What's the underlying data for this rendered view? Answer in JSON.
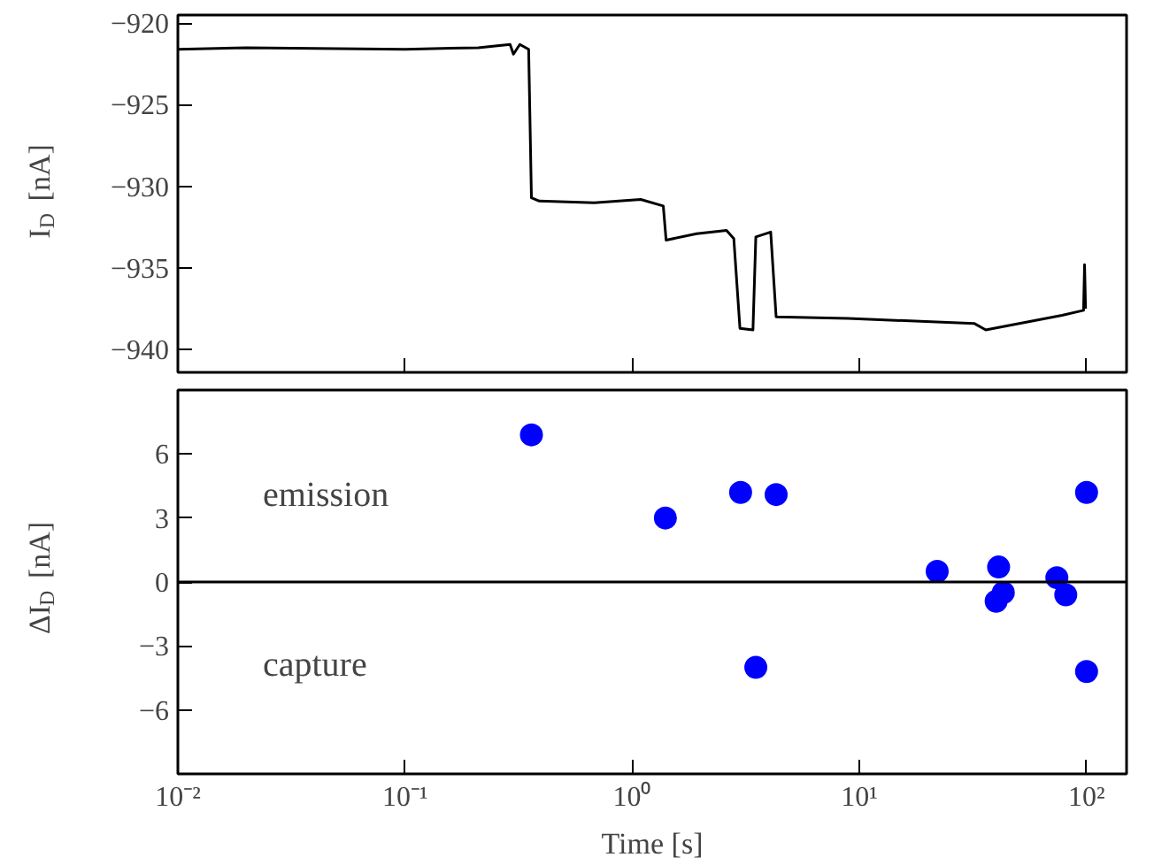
{
  "chart_data": [
    {
      "type": "line",
      "ylabel": "I$_{D}$ [nA]",
      "log": "x",
      "grid": false,
      "tick_labels": "y",
      "marker": "none",
      "line_style": "solid",
      "xlim": [
        0.01,
        150
      ],
      "xticks": [
        {
          "value": 0.01,
          "label": null
        },
        {
          "value": 0.1,
          "label": null
        },
        {
          "value": 1,
          "label": null
        },
        {
          "value": 10,
          "label": null
        },
        {
          "value": 100,
          "label": null
        }
      ],
      "ylim": [
        -941.4,
        -919.5
      ],
      "yticks": [
        {
          "value": -940,
          "label": "−940"
        },
        {
          "value": -935,
          "label": "−935"
        },
        {
          "value": -930,
          "label": "−930"
        },
        {
          "value": -925,
          "label": "−925"
        },
        {
          "value": -920,
          "label": "−920"
        }
      ],
      "x": [
        0.01,
        0.02,
        0.1,
        0.21,
        0.29,
        0.3,
        0.32,
        0.35,
        0.36,
        0.39,
        0.68,
        1.09,
        1.37,
        1.41,
        1.92,
        2.6,
        2.8,
        2.98,
        3.4,
        3.5,
        4.07,
        4.3,
        8.9,
        32,
        36,
        78,
        97,
        98,
        99
      ],
      "series": [
        {
          "color": "#000000",
          "values": [
            -921.6,
            -921.5,
            -921.6,
            -921.5,
            -921.3,
            -921.9,
            -921.3,
            -921.6,
            -930.7,
            -930.9,
            -931.0,
            -930.8,
            -931.2,
            -933.3,
            -932.9,
            -932.7,
            -933.2,
            -938.7,
            -938.8,
            -933.1,
            -932.8,
            -938.0,
            -938.1,
            -938.4,
            -938.8,
            -937.9,
            -937.6,
            -934.8,
            -937.5
          ]
        }
      ]
    },
    {
      "type": "scatter",
      "xlabel": "Time [s]",
      "ylabel": "ΔI$_{D}$ [nA]",
      "log": "x",
      "grid": false,
      "marker": "circle",
      "xlim": [
        0.01,
        150
      ],
      "xticks": [
        {
          "value": 0.01,
          "label": "10⁻²"
        },
        {
          "value": 0.1,
          "label": "10⁻¹"
        },
        {
          "value": 1,
          "label": "10⁰"
        },
        {
          "value": 10,
          "label": "10¹"
        },
        {
          "value": 100,
          "label": "10²"
        }
      ],
      "ylim": [
        -9,
        9
      ],
      "yticks": [
        {
          "value": -6,
          "label": "−6"
        },
        {
          "value": -3,
          "label": "−3"
        },
        0,
        3,
        6
      ],
      "ref_lines": [
        {
          "axis": "y",
          "value": 0,
          "color": "#000000"
        }
      ],
      "annotations": [
        "emission",
        "capture"
      ],
      "x": [
        0.36,
        1.4,
        3.0,
        4.3,
        3.5,
        22,
        41,
        43,
        40,
        74,
        81,
        100,
        100
      ],
      "series": [
        {
          "color": "#0000ff",
          "values": [
            6.9,
            3.0,
            4.2,
            4.1,
            -4.0,
            0.5,
            0.7,
            -0.5,
            -0.9,
            0.2,
            -0.6,
            4.2,
            -4.2
          ]
        }
      ]
    }
  ]
}
